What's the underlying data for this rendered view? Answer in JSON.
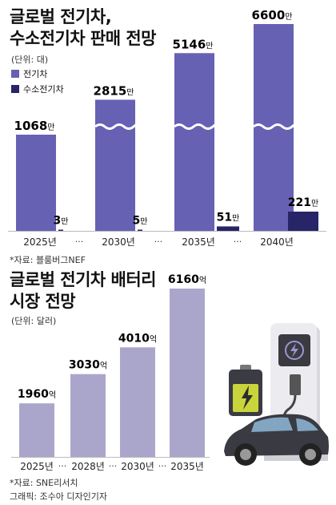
{
  "ev_chart": {
    "title_line1": "글로벌 전기차,",
    "title_line2": "수소전기차 판매 전망",
    "unit": "(단위: 대)",
    "legend_ev": "전기차",
    "legend_fcev": "수소전기차",
    "source": "*자료: 블룸버그NEF"
  },
  "battery_chart": {
    "title_line1": "글로벌 전기차 배터리",
    "title_line2": "시장 전망",
    "unit": "(단위: 달러)",
    "source": "*자료: SNE리서치"
  },
  "credit": "그래픽: 조수아 디자인기자",
  "ellipsis": "···",
  "chart_data": [
    {
      "type": "bar",
      "title": "글로벌 전기차, 수소전기차 판매 전망",
      "unit": "대",
      "categories": [
        "2025년",
        "2030년",
        "2035년",
        "2040년"
      ],
      "series": [
        {
          "name": "전기차",
          "values": [
            10680000,
            28150000,
            51460000,
            66000000
          ],
          "labels": [
            "1068만",
            "2815만",
            "5146만",
            "6600만"
          ],
          "color": "#6661b3"
        },
        {
          "name": "수소전기차",
          "values": [
            30000,
            50000,
            510000,
            2210000
          ],
          "labels": [
            "3만",
            "5만",
            "51만",
            "221만"
          ],
          "color": "#272467"
        }
      ],
      "axis_break": true,
      "legend_position": "top-left"
    },
    {
      "type": "bar",
      "title": "글로벌 전기차 배터리 시장 전망",
      "unit": "달러",
      "categories": [
        "2025년",
        "2028년",
        "2030년",
        "2035년"
      ],
      "values": [
        196000000000,
        303000000000,
        401000000000,
        616000000000
      ],
      "labels": [
        "1960억",
        "3030억",
        "4010억",
        "6160억"
      ],
      "color": "#aaa6cb"
    }
  ]
}
